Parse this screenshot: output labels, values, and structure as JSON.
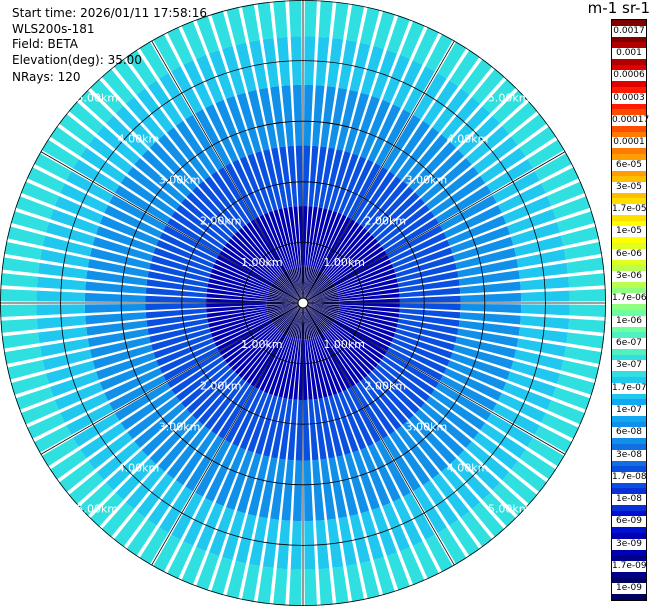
{
  "header": {
    "start_time": "Start time: 2026/01/11 17:58:16",
    "instrument": "WLS200s-181",
    "field": "Field: BETA",
    "elevation": "Elevation(deg): 35.00",
    "nrays": "NRays: 120"
  },
  "units_label": "m-1 sr-1",
  "chart_data": {
    "type": "heatmap",
    "projection": "polar-ppi",
    "field": "BETA",
    "elevation_deg": 35.0,
    "n_rays": 120,
    "range_rings_km": [
      1,
      2,
      3,
      4,
      5
    ],
    "max_range_km": 5.0,
    "ring_labels": [
      "1.00km",
      "2.00km",
      "3.00km",
      "4.00km",
      "5.00km"
    ],
    "colorbar": {
      "scale": "log",
      "min": 1e-09,
      "max": 0.0017,
      "tick_labels": [
        "0.0017",
        "0.001",
        "0.0006",
        "0.0003",
        "0.00017",
        "0.0001",
        "6e-05",
        "3e-05",
        "1.7e-05",
        "1e-05",
        "6e-06",
        "3e-06",
        "1.7e-06",
        "1e-06",
        "6e-07",
        "3e-07",
        "1.7e-07",
        "1e-07",
        "6e-08",
        "3e-08",
        "1.7e-08",
        "1e-08",
        "6e-09",
        "3e-09",
        "1.7e-09",
        "1e-09"
      ],
      "colors": [
        "#800000",
        "#b00000",
        "#e00000",
        "#ff1a00",
        "#ff4d00",
        "#ff7a00",
        "#ff9e00",
        "#ffbe00",
        "#ffdf00",
        "#ffff00",
        "#e0ff20",
        "#b8ff50",
        "#90ff80",
        "#6cffa0",
        "#50f0c0",
        "#30e0e0",
        "#20c8f0",
        "#10a8f0",
        "#1090e8",
        "#1070e0",
        "#0a50e0",
        "#0a30d8",
        "#0010d0",
        "#0000b0",
        "#00008a",
        "#000060"
      ]
    },
    "value_bands": [
      {
        "range_km": [
          0.0,
          0.6
        ],
        "beta": 1e-09
      },
      {
        "range_km": [
          0.6,
          1.6
        ],
        "beta": 3e-09
      },
      {
        "range_km": [
          1.6,
          2.6
        ],
        "beta": 1.7e-08
      },
      {
        "range_km": [
          2.6,
          3.6
        ],
        "beta": 6e-08
      },
      {
        "range_km": [
          3.6,
          4.4
        ],
        "beta": 1.7e-07
      },
      {
        "range_km": [
          4.4,
          5.0
        ],
        "beta": 3e-07
      }
    ]
  }
}
